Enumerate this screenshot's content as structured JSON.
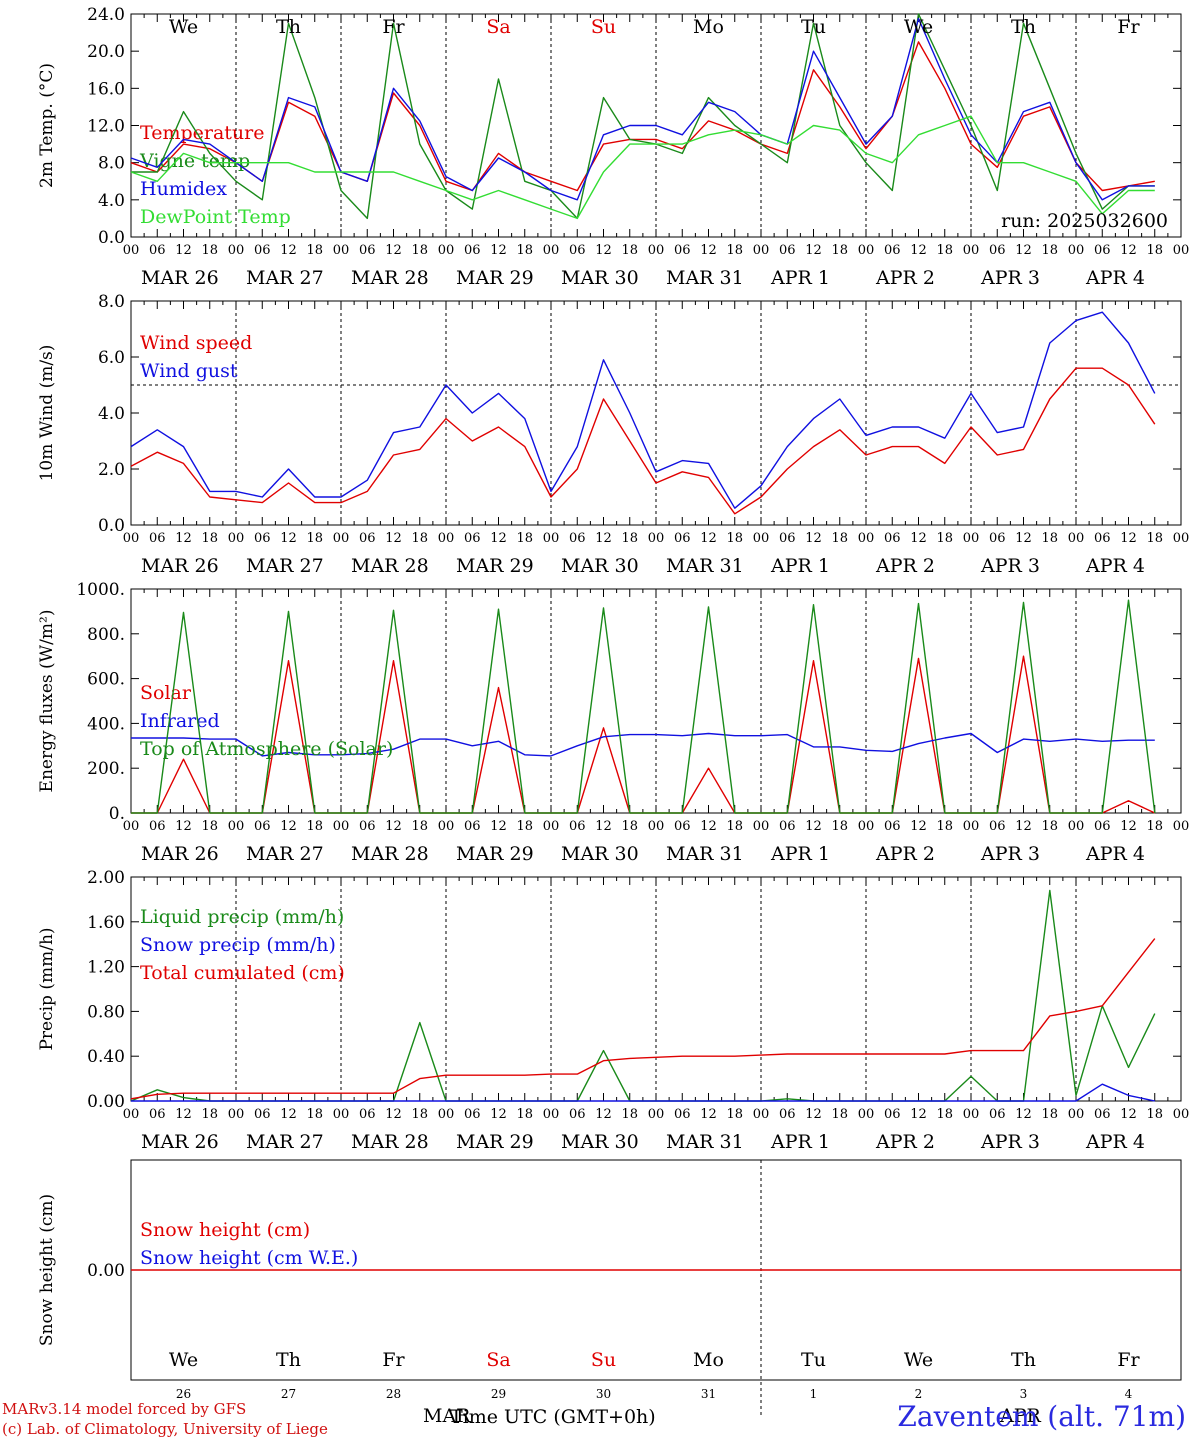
{
  "run_label": "run: 2025032600",
  "weekdays": [
    {
      "label": "We",
      "color": "#000000"
    },
    {
      "label": "Th",
      "color": "#000000"
    },
    {
      "label": "Fr",
      "color": "#000000"
    },
    {
      "label": "Sa",
      "color": "#e00000"
    },
    {
      "label": "Su",
      "color": "#e00000"
    },
    {
      "label": "Mo",
      "color": "#000000"
    },
    {
      "label": "Tu",
      "color": "#000000"
    },
    {
      "label": "We",
      "color": "#000000"
    },
    {
      "label": "Th",
      "color": "#000000"
    },
    {
      "label": "Fr",
      "color": "#000000"
    }
  ],
  "day_labels": [
    "MAR 26",
    "MAR 27",
    "MAR 28",
    "MAR 29",
    "MAR 30",
    "MAR 31",
    "APR  1",
    "APR  2",
    "APR  3",
    "APR  4"
  ],
  "hour_ticks": [
    "00",
    "06",
    "12",
    "18"
  ],
  "bottom_day_numbers": [
    "26",
    "27",
    "28",
    "29",
    "30",
    "31",
    "1",
    "2",
    "3",
    "4"
  ],
  "bottom_months": [
    "MAR",
    "APR"
  ],
  "footer": {
    "credit_line1": "MARv3.14 model forced by GFS",
    "credit_line2": "(c) Lab. of Climatology, University of Liege",
    "xlabel": "Time UTC (GMT+0h)",
    "station": "Zaventem (alt. 71m)"
  },
  "colors": {
    "red": "#e00000",
    "green": "#1a8a1a",
    "blue": "#1010e0",
    "lightgreen": "#33dd33"
  },
  "chart_data": [
    {
      "type": "line",
      "ylabel": "2m Temp. (°C)",
      "ylim": [
        0,
        24
      ],
      "ytick_labels": [
        "0.0",
        "4.0",
        "8.0",
        "12.0",
        "16.0",
        "20.0",
        "24.0"
      ],
      "ytick_values": [
        0,
        4,
        8,
        12,
        16,
        20,
        24
      ],
      "x_hours": [
        0,
        6,
        12,
        18,
        24,
        30,
        36,
        42,
        48,
        54,
        60,
        66,
        72,
        78,
        84,
        90,
        96,
        102,
        108,
        114,
        120,
        126,
        132,
        138,
        144,
        150,
        156,
        162,
        168,
        174,
        180,
        186,
        192,
        198,
        204,
        210,
        216,
        222,
        228,
        234
      ],
      "series": [
        {
          "name": "Temperature",
          "color": "#e00000",
          "values": [
            8,
            7,
            10,
            9.5,
            8,
            6,
            14.5,
            13,
            7,
            6,
            15.5,
            12,
            6,
            5,
            9,
            7,
            6,
            5,
            10,
            10.5,
            10.5,
            9.5,
            12.5,
            11.5,
            10,
            9,
            18,
            14,
            9.5,
            13,
            21,
            16,
            10,
            7.5,
            13,
            14,
            8,
            5,
            5.5,
            6
          ]
        },
        {
          "name": "Vigne temp",
          "color": "#1a8a1a",
          "values": [
            7,
            7,
            13.5,
            9,
            6,
            4,
            23,
            15,
            5,
            2,
            23,
            10,
            5,
            3,
            17,
            6,
            5,
            2,
            15,
            10.5,
            10,
            9,
            15,
            12,
            10,
            8,
            23,
            12,
            8,
            5,
            24,
            18,
            12,
            5,
            23,
            16,
            9,
            3,
            5.5,
            5.5
          ]
        },
        {
          "name": "Humidex",
          "color": "#1010e0",
          "values": [
            8.5,
            7.5,
            10.5,
            10,
            8,
            6,
            15,
            14,
            7,
            6,
            16,
            12.5,
            6.5,
            5,
            8.5,
            7,
            5,
            4,
            11,
            12,
            12,
            11,
            14.5,
            13.5,
            11,
            10,
            20,
            15,
            10,
            13,
            23.5,
            17,
            11,
            8,
            13.5,
            14.5,
            8,
            4,
            5.5,
            5.5
          ]
        },
        {
          "name": "DewPoint Temp",
          "color": "#33dd33",
          "values": [
            7,
            6,
            9,
            8,
            8,
            8,
            8,
            7,
            7,
            7,
            7,
            6,
            5,
            4,
            5,
            4,
            3,
            2,
            7,
            10,
            10,
            10,
            11,
            11.5,
            11,
            10,
            12,
            11.5,
            9,
            8,
            11,
            12,
            13,
            8,
            8,
            7,
            6,
            2.5,
            5,
            5
          ]
        }
      ],
      "annotations": []
    },
    {
      "type": "line",
      "ylabel": "10m Wind (m/s)",
      "ylim": [
        0,
        8
      ],
      "ytick_labels": [
        "0.0",
        "2.0",
        "4.0",
        "6.0",
        "8.0"
      ],
      "ytick_values": [
        0,
        2,
        4,
        6,
        8
      ],
      "reference_line": 5,
      "x_hours": [
        0,
        6,
        12,
        18,
        24,
        30,
        36,
        42,
        48,
        54,
        60,
        66,
        72,
        78,
        84,
        90,
        96,
        102,
        108,
        114,
        120,
        126,
        132,
        138,
        144,
        150,
        156,
        162,
        168,
        174,
        180,
        186,
        192,
        198,
        204,
        210,
        216,
        222,
        228,
        234
      ],
      "series": [
        {
          "name": "Wind speed",
          "color": "#e00000",
          "values": [
            2.1,
            2.6,
            2.2,
            1.0,
            0.9,
            0.8,
            1.5,
            0.8,
            0.8,
            1.2,
            2.5,
            2.7,
            3.8,
            3.0,
            3.5,
            2.8,
            1.0,
            2.0,
            4.5,
            3.0,
            1.5,
            1.9,
            1.7,
            0.4,
            1.0,
            2.0,
            2.8,
            3.4,
            2.5,
            2.8,
            2.8,
            2.2,
            3.5,
            2.5,
            2.7,
            4.5,
            5.6,
            5.6,
            5.0,
            3.6
          ]
        },
        {
          "name": "Wind gust",
          "color": "#1010e0",
          "values": [
            2.8,
            3.4,
            2.8,
            1.2,
            1.2,
            1.0,
            2.0,
            1.0,
            1.0,
            1.6,
            3.3,
            3.5,
            5.0,
            4.0,
            4.7,
            3.8,
            1.2,
            2.8,
            5.9,
            4.0,
            1.9,
            2.3,
            2.2,
            0.6,
            1.4,
            2.8,
            3.8,
            4.5,
            3.2,
            3.5,
            3.5,
            3.1,
            4.7,
            3.3,
            3.5,
            6.5,
            7.3,
            7.6,
            6.5,
            4.7
          ]
        }
      ],
      "annotations": []
    },
    {
      "type": "line",
      "ylabel": "Energy fluxes (W/m²)",
      "ylim": [
        0,
        1000
      ],
      "ytick_labels": [
        "0.",
        "200.",
        "400.",
        "600.",
        "800.",
        "1000."
      ],
      "ytick_values": [
        0,
        200,
        400,
        600,
        800,
        1000
      ],
      "x_hours": [
        0,
        6,
        12,
        18,
        24,
        30,
        36,
        42,
        48,
        54,
        60,
        66,
        72,
        78,
        84,
        90,
        96,
        102,
        108,
        114,
        120,
        126,
        132,
        138,
        144,
        150,
        156,
        162,
        168,
        174,
        180,
        186,
        192,
        198,
        204,
        210,
        216,
        222,
        228,
        234
      ],
      "series": [
        {
          "name": "Solar",
          "color": "#e00000",
          "values": [
            0,
            0,
            240,
            0,
            0,
            0,
            680,
            0,
            0,
            0,
            680,
            0,
            0,
            0,
            560,
            0,
            0,
            0,
            380,
            0,
            0,
            0,
            200,
            0,
            0,
            0,
            680,
            0,
            0,
            0,
            690,
            0,
            0,
            0,
            700,
            0,
            0,
            0,
            55,
            0
          ]
        },
        {
          "name": "Infrared",
          "color": "#1010e0",
          "values": [
            335,
            335,
            335,
            330,
            330,
            255,
            270,
            260,
            260,
            265,
            285,
            330,
            330,
            300,
            320,
            260,
            255,
            300,
            340,
            350,
            350,
            345,
            355,
            345,
            345,
            350,
            295,
            295,
            280,
            275,
            310,
            335,
            355,
            270,
            330,
            320,
            330,
            320,
            325,
            325
          ]
        },
        {
          "name": "Top of Atmosphere (Solar)",
          "color": "#1a8a1a",
          "values": [
            0,
            0,
            895,
            0,
            0,
            0,
            900,
            0,
            0,
            0,
            905,
            0,
            0,
            0,
            910,
            0,
            0,
            0,
            915,
            0,
            0,
            0,
            920,
            0,
            0,
            0,
            930,
            0,
            0,
            0,
            935,
            0,
            0,
            0,
            940,
            0,
            0,
            0,
            950,
            0
          ]
        }
      ],
      "annotations": []
    },
    {
      "type": "line",
      "ylabel": "Precip (mm/h)",
      "ylim": [
        0,
        2
      ],
      "ytick_labels": [
        "0.00",
        "0.40",
        "0.80",
        "1.20",
        "1.60",
        "2.00"
      ],
      "ytick_values": [
        0,
        0.4,
        0.8,
        1.2,
        1.6,
        2.0
      ],
      "x_hours": [
        0,
        6,
        12,
        18,
        24,
        30,
        36,
        42,
        48,
        54,
        60,
        66,
        72,
        78,
        84,
        90,
        96,
        102,
        108,
        114,
        120,
        126,
        132,
        138,
        144,
        150,
        156,
        162,
        168,
        174,
        180,
        186,
        192,
        198,
        204,
        210,
        216,
        222,
        228,
        234
      ],
      "series": [
        {
          "name": "Liquid precip (mm/h)",
          "color": "#1a8a1a",
          "values": [
            0,
            0.1,
            0.03,
            0,
            0,
            0,
            0,
            0,
            0,
            0,
            0,
            0.7,
            0,
            0,
            0,
            0,
            0,
            0,
            0.45,
            0,
            0,
            0,
            0,
            0,
            0,
            0.02,
            0,
            0,
            0,
            0,
            0,
            0,
            0.22,
            0,
            0,
            1.88,
            0.05,
            0.85,
            0.3,
            0.78
          ]
        },
        {
          "name": "Snow precip (mm/h)",
          "color": "#1010e0",
          "values": [
            0,
            0,
            0,
            0,
            0,
            0,
            0,
            0,
            0,
            0,
            0,
            0,
            0,
            0,
            0,
            0,
            0,
            0,
            0,
            0,
            0,
            0,
            0,
            0,
            0,
            0,
            0,
            0,
            0,
            0,
            0,
            0,
            0,
            0,
            0,
            0,
            0,
            0.15,
            0.05,
            0
          ]
        },
        {
          "name": "Total cumulated (cm)",
          "color": "#e00000",
          "values": [
            0.02,
            0.06,
            0.07,
            0.07,
            0.07,
            0.07,
            0.07,
            0.07,
            0.07,
            0.07,
            0.07,
            0.2,
            0.23,
            0.23,
            0.23,
            0.23,
            0.24,
            0.24,
            0.36,
            0.38,
            0.39,
            0.4,
            0.4,
            0.4,
            0.41,
            0.42,
            0.42,
            0.42,
            0.42,
            0.42,
            0.42,
            0.42,
            0.45,
            0.45,
            0.45,
            0.76,
            0.8,
            0.85,
            1.15,
            1.45
          ]
        }
      ],
      "annotations": []
    },
    {
      "type": "line",
      "ylabel": "Snow height (cm)",
      "ylim": [
        -1,
        1
      ],
      "ytick_labels": [
        "0.00"
      ],
      "ytick_values": [
        0
      ],
      "x_hours": [
        0,
        240
      ],
      "series": [
        {
          "name": "Snow height (cm)",
          "color": "#e00000",
          "values": [
            0,
            0
          ]
        },
        {
          "name": "Snow height (cm W.E.)",
          "color": "#1010e0",
          "values": null
        }
      ],
      "annotations": []
    }
  ]
}
